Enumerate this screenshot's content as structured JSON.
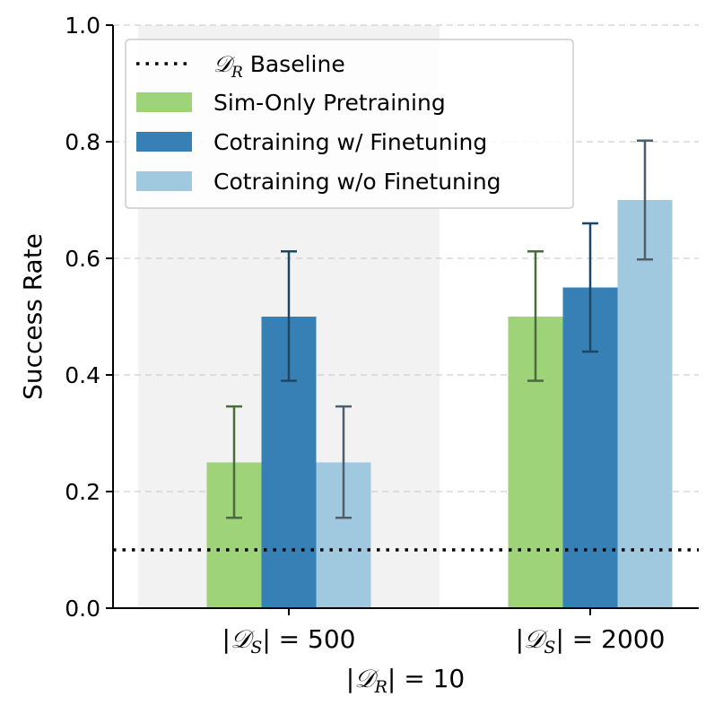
{
  "chart_data": {
    "type": "bar",
    "ylabel": "Success Rate",
    "ylim": [
      0,
      1.0
    ],
    "yticks": [
      "0.0",
      "0.2",
      "0.4",
      "0.6",
      "0.8",
      "1.0"
    ],
    "ytick_values": [
      0,
      0.2,
      0.4,
      0.6,
      0.8,
      1.0
    ],
    "grid": "y-dashed",
    "legend_position": "top-left",
    "categories": [
      {
        "prefix": "|",
        "sym": "𝒟",
        "sub": "S",
        "suffix": "| = 500"
      },
      {
        "prefix": "|",
        "sym": "𝒟",
        "sub": "S",
        "suffix": "| = 2000"
      }
    ],
    "xlabel": {
      "prefix": "|",
      "sym": "𝒟",
      "sub": "R",
      "suffix": "| = 10"
    },
    "highlight_category": 0,
    "baseline": {
      "value": 0.1,
      "label": {
        "sym": "𝒟",
        "sub": "R",
        "suffix": " Baseline"
      },
      "color": "#000000"
    },
    "series": [
      {
        "name": "Sim-Only Pretraining",
        "color": "#9fd37a",
        "error_color": "#4a6b3a",
        "values": [
          0.25,
          0.5
        ],
        "err_low": [
          0.155,
          0.39
        ],
        "err_high": [
          0.346,
          0.612
        ]
      },
      {
        "name": "Cotraining w/ Finetuning",
        "color": "#3680b5",
        "error_color": "#1e4663",
        "values": [
          0.5,
          0.55
        ],
        "err_low": [
          0.39,
          0.44
        ],
        "err_high": [
          0.612,
          0.66
        ]
      },
      {
        "name": "Cotraining w/o Finetuning",
        "color": "#a0c9e0",
        "error_color": "#4c5f6b",
        "values": [
          0.25,
          0.7
        ],
        "err_low": [
          0.155,
          0.598
        ],
        "err_high": [
          0.346,
          0.802
        ]
      }
    ]
  }
}
